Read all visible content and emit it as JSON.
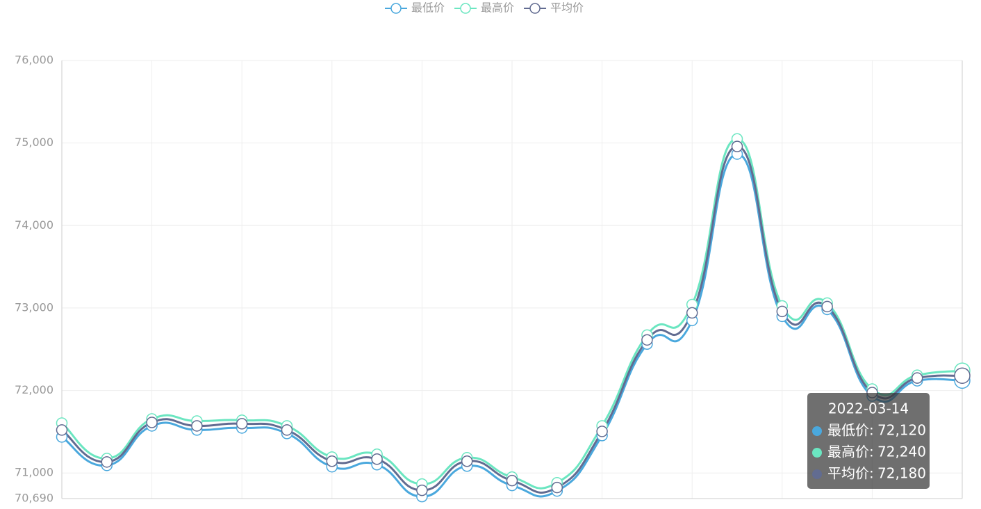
{
  "chart_data": {
    "type": "line",
    "categories": [
      null,
      null,
      null,
      null,
      null,
      null,
      null,
      null,
      null,
      null,
      null,
      null,
      null,
      null,
      null,
      null,
      null,
      null,
      null,
      null,
      null
    ],
    "series": [
      {
        "name": "最低价",
        "color": "#4aa8dd",
        "values": [
          71437,
          71092,
          71571,
          71521,
          71546,
          71479,
          71076,
          71101,
          70714,
          71084,
          70849,
          70782,
          71454,
          72563,
          72849,
          74866,
          72899,
          72983,
          71933,
          72118,
          72120
        ]
      },
      {
        "name": "最高价",
        "color": "#6be6c1",
        "values": [
          71605,
          71176,
          71655,
          71630,
          71639,
          71571,
          71193,
          71227,
          70866,
          71185,
          70950,
          70882,
          71571,
          72672,
          73042,
          75050,
          73025,
          73059,
          72017,
          72185,
          72240
        ]
      },
      {
        "name": "平均价",
        "color": "#626c91",
        "values": [
          71521,
          71134,
          71613,
          71571,
          71597,
          71521,
          71143,
          71168,
          70790,
          71143,
          70908,
          70824,
          71504,
          72613,
          72941,
          74958,
          72958,
          73017,
          71975,
          72151,
          72180
        ]
      }
    ],
    "ylim": [
      70690,
      76000
    ],
    "yticks": [
      {
        "value": 70690,
        "label": "70,690"
      },
      {
        "value": 71000,
        "label": "71,000"
      },
      {
        "value": 72000,
        "label": "72,000"
      },
      {
        "value": 73000,
        "label": "73,000"
      },
      {
        "value": 74000,
        "label": "74,000"
      },
      {
        "value": 75000,
        "label": "75,000"
      },
      {
        "value": 76000,
        "label": "76,000"
      }
    ],
    "grid": true,
    "tooltip": {
      "title": "2022-03-14",
      "labels": [
        "72,120",
        "72,240",
        "72,180"
      ]
    }
  }
}
